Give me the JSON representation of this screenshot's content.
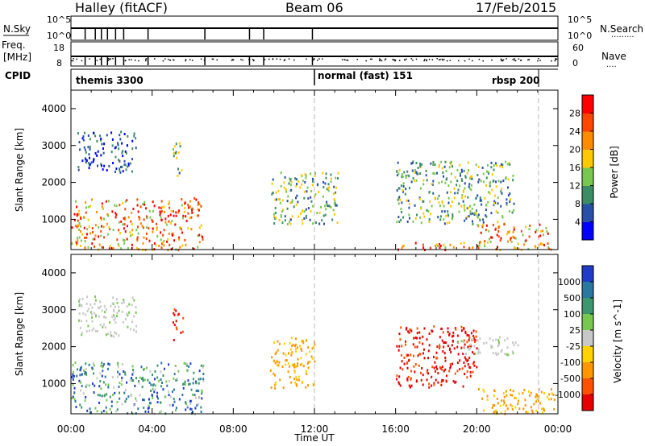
{
  "header": {
    "radar": "Halley (fitACF)",
    "beam": "Beam 06",
    "date": "17/Feb/2015"
  },
  "params": {
    "nsky_label": "N.Sky",
    "nsky_ticks": [
      "10^5",
      "10^0"
    ],
    "nsearch_label": "N.Search",
    "nsearch_ticks": [
      "10^5",
      "10^0"
    ],
    "freq_label_1": "Freq.",
    "freq_label_2": "[MHz]",
    "freq_ticks": [
      "18",
      "8"
    ],
    "nave_label": "Nave",
    "nave_ticks": [
      "60",
      "0"
    ],
    "cpid_label": "CPID",
    "cpid_segments": [
      {
        "label": "themis 3300",
        "start": 0.0,
        "end": 11.9
      },
      {
        "label": "normal (fast) 151",
        "start": 11.9,
        "end": 23.0
      },
      {
        "label": "rbsp 200",
        "start": 23.0,
        "end": 24.0
      }
    ]
  },
  "chart_data": [
    {
      "type": "heatmap",
      "panel": "power",
      "ylabel": "Slant Range [km]",
      "xlim": [
        0,
        24
      ],
      "ylim": [
        180,
        4500
      ],
      "yticks": [
        1000,
        2000,
        3000,
        4000
      ],
      "cbar_label": "Power [dB]",
      "cbar_ticks": [
        "4",
        "8",
        "12",
        "16",
        "20",
        "24",
        "28"
      ],
      "cbar_colors": [
        "#0000ff",
        "#2850a8",
        "#3c8c64",
        "#78c850",
        "#ffc800",
        "#ff8c00",
        "#ff4600",
        "#ff0000"
      ],
      "features": [
        {
          "name": "dawn-sector near range scatter",
          "t": [
            0.0,
            6.5
          ],
          "range": [
            200,
            1600
          ],
          "level": "high"
        },
        {
          "name": "high band 01-03 UT",
          "t": [
            0.3,
            3.2
          ],
          "range": [
            2300,
            3400
          ],
          "level": "low"
        },
        {
          "name": "arc 05 UT",
          "t": [
            5.0,
            5.5
          ],
          "range": [
            2200,
            3100
          ],
          "level": "mid"
        },
        {
          "name": "patches 09-11 UT",
          "t": [
            9.8,
            13.2
          ],
          "range": [
            900,
            2300
          ],
          "level": "mid"
        },
        {
          "name": "structured arc 16-21 UT",
          "t": [
            16.0,
            21.8
          ],
          "range": [
            900,
            2600
          ],
          "level": "mid"
        },
        {
          "name": "ground scatter 20-23 UT",
          "t": [
            20.0,
            23.8
          ],
          "range": [
            200,
            900
          ],
          "level": "high"
        },
        {
          "name": "near range band 16-20 UT",
          "t": [
            16.0,
            20.0
          ],
          "range": [
            200,
            400
          ],
          "level": "high"
        }
      ]
    },
    {
      "type": "heatmap",
      "panel": "velocity",
      "xlabel": "Time UT",
      "ylabel": "Slant Range [km]",
      "xlim": [
        0,
        24
      ],
      "ylim": [
        180,
        4500
      ],
      "xticks": [
        "00:00",
        "04:00",
        "08:00",
        "12:00",
        "16:00",
        "20:00",
        "00:00"
      ],
      "yticks": [
        1000,
        2000,
        3000,
        4000
      ],
      "cbar_label": "Velocity [m s^-1]",
      "cbar_ticks": [
        "1000",
        "500",
        "100",
        "25",
        "-25",
        "-100",
        "-500",
        "-1000"
      ],
      "cbar_colors": [
        "#1e3cc8",
        "#2878a0",
        "#3c966e",
        "#78c850",
        "#c8c8c8",
        "#ffd200",
        "#ff9600",
        "#ff5000",
        "#e60000"
      ],
      "features": [
        {
          "name": "dawn-sector mixed velocities",
          "t": [
            0.0,
            6.5
          ],
          "range": [
            200,
            1600
          ],
          "level": "mixed-green"
        },
        {
          "name": "grey high band",
          "t": [
            0.3,
            3.2
          ],
          "range": [
            2300,
            3400
          ],
          "level": "near-zero"
        },
        {
          "name": "arc 05 UT",
          "t": [
            5.0,
            5.5
          ],
          "range": [
            2200,
            3100
          ],
          "level": "red"
        },
        {
          "name": "patches 09-12 UT",
          "t": [
            9.8,
            12.0
          ],
          "range": [
            900,
            2300
          ],
          "level": "orange"
        },
        {
          "name": "red arc 16-20 UT",
          "t": [
            16.0,
            20.0
          ],
          "range": [
            900,
            2600
          ],
          "level": "red"
        },
        {
          "name": "grey arc 19-22 UT",
          "t": [
            19.0,
            22.0
          ],
          "range": [
            1800,
            2300
          ],
          "level": "near-zero"
        },
        {
          "name": "ground scatter 20-23 UT",
          "t": [
            20.0,
            23.8
          ],
          "range": [
            200,
            900
          ],
          "level": "orange"
        }
      ]
    }
  ]
}
